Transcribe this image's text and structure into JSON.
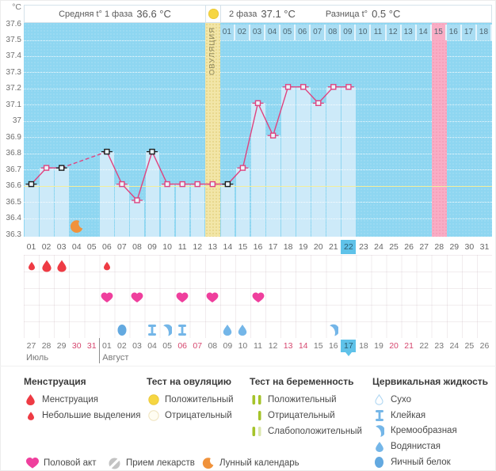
{
  "header": {
    "phase1_label": "Средняя t° 1 фаза",
    "phase1_value": "36.6 °C",
    "phase2_label": "2 фаза",
    "phase2_value": "37.1 °C",
    "diff_label": "Разница t°",
    "diff_value": "0.5 °C"
  },
  "axis": {
    "unit": "°C",
    "ticks": [
      "37.6",
      "37.5",
      "37.4",
      "37.3",
      "37.2",
      "37.1",
      "37",
      "36.9",
      "36.8",
      "36.7",
      "36.6",
      "36.5",
      "36.4",
      "36.3"
    ]
  },
  "chart_data": {
    "type": "line",
    "xlabel": "cycle day",
    "ylabel": "°C",
    "ylim": [
      36.3,
      37.6
    ],
    "y_step": 0.1,
    "cycle_days": [
      "01",
      "02",
      "03",
      "04",
      "05",
      "06",
      "07",
      "08",
      "09",
      "10",
      "11",
      "12",
      "13",
      "14",
      "15",
      "16",
      "17",
      "18",
      "19",
      "20",
      "21",
      "22",
      "23",
      "24",
      "25",
      "26",
      "27",
      "28",
      "29",
      "30",
      "31"
    ],
    "temps": [
      36.61,
      36.71,
      36.71,
      null,
      null,
      36.81,
      36.61,
      36.51,
      36.81,
      36.61,
      36.61,
      36.61,
      36.61,
      36.61,
      36.71,
      37.11,
      36.91,
      37.21,
      37.21,
      37.11,
      37.21,
      37.21,
      null,
      null,
      null,
      null,
      null,
      null,
      null,
      null,
      null
    ],
    "flagged_days": [
      1,
      3,
      6,
      9,
      14
    ],
    "dashed_gap_days": [
      [
        3,
        6
      ]
    ],
    "coverline": 36.6,
    "ovulation_day": 13,
    "ovulation_label": "ОВУЛЯЦИЯ",
    "expected_period_day": 28,
    "current_cycle_day": 22,
    "phase2_days": [
      "01",
      "02",
      "03",
      "04",
      "05",
      "06",
      "07",
      "08",
      "09",
      "10",
      "11",
      "12",
      "13",
      "14",
      "15",
      "16",
      "17",
      "18"
    ],
    "phase2_period_cell": "15"
  },
  "events": {
    "menstruation": [
      {
        "day": 1,
        "size": "small"
      },
      {
        "day": 2,
        "size": "large"
      },
      {
        "day": 3,
        "size": "large"
      },
      {
        "day": 6,
        "size": "small"
      }
    ],
    "intercourse_days": [
      6,
      8,
      11,
      13,
      16
    ],
    "cervical_fluid": [
      {
        "day": 7,
        "type": "eggwhite"
      },
      {
        "day": 9,
        "type": "sticky"
      },
      {
        "day": 10,
        "type": "creamy"
      },
      {
        "day": 11,
        "type": "sticky"
      },
      {
        "day": 14,
        "type": "watery"
      },
      {
        "day": 15,
        "type": "watery"
      },
      {
        "day": 21,
        "type": "creamy"
      }
    ],
    "lunar_days": [
      4
    ]
  },
  "calendar": {
    "months": [
      {
        "label": "Июль"
      },
      {
        "label": "Август"
      }
    ],
    "august_start_index": 5,
    "today_index": 21,
    "days": [
      {
        "label": "27",
        "red": false
      },
      {
        "label": "28",
        "red": false
      },
      {
        "label": "29",
        "red": false
      },
      {
        "label": "30",
        "red": true
      },
      {
        "label": "31",
        "red": true
      },
      {
        "label": "01",
        "red": false
      },
      {
        "label": "02",
        "red": false
      },
      {
        "label": "03",
        "red": false
      },
      {
        "label": "04",
        "red": false
      },
      {
        "label": "05",
        "red": false
      },
      {
        "label": "06",
        "red": true
      },
      {
        "label": "07",
        "red": true
      },
      {
        "label": "08",
        "red": false
      },
      {
        "label": "09",
        "red": false
      },
      {
        "label": "10",
        "red": false
      },
      {
        "label": "11",
        "red": false
      },
      {
        "label": "12",
        "red": false
      },
      {
        "label": "13",
        "red": true
      },
      {
        "label": "14",
        "red": true
      },
      {
        "label": "15",
        "red": false
      },
      {
        "label": "16",
        "red": false
      },
      {
        "label": "17",
        "red": false
      },
      {
        "label": "18",
        "red": false
      },
      {
        "label": "19",
        "red": false
      },
      {
        "label": "20",
        "red": true
      },
      {
        "label": "21",
        "red": true
      },
      {
        "label": "22",
        "red": false
      },
      {
        "label": "23",
        "red": false
      },
      {
        "label": "24",
        "red": false
      },
      {
        "label": "25",
        "red": false
      },
      {
        "label": "26",
        "red": false
      }
    ]
  },
  "legend": {
    "menstruation": {
      "title": "Менструация",
      "items": [
        {
          "label": "Менструация"
        },
        {
          "label": "Небольшие выделения"
        }
      ]
    },
    "ovulation_test": {
      "title": "Тест на овуляцию",
      "items": [
        {
          "label": "Положительный"
        },
        {
          "label": "Отрицательный"
        }
      ]
    },
    "pregnancy_test": {
      "title": "Тест на беременность",
      "items": [
        {
          "label": "Положительный"
        },
        {
          "label": "Отрицательный"
        },
        {
          "label": "Слабоположительный"
        }
      ]
    },
    "cervical_fluid": {
      "title": "Цервикальная жидкость",
      "items": [
        {
          "label": "Сухо"
        },
        {
          "label": "Клейкая"
        },
        {
          "label": "Кремообразная"
        },
        {
          "label": "Водянистая"
        },
        {
          "label": "Яичный белок"
        }
      ]
    },
    "intercourse_label": "Половой акт",
    "medication_label": "Прием лекарств",
    "lunar_label": "Лунный календарь"
  },
  "colors": {
    "chart_bg": "#8ed6f1",
    "bar": "#cdeaf9",
    "line": "#e0437f",
    "flagged": "#1c1c1c",
    "coverline": "#f3ee9c",
    "ovulation_col": "#f2e6a8",
    "period_col": "#f9adc5",
    "highlight": "#5fc2e9",
    "menstruation": "#ee3b44",
    "heart": "#ef3f9d",
    "fluid": "#74b6e8",
    "fluid_dark": "#63a9e0",
    "test_yellow": "#f6d642",
    "test_green": "#a5c32a",
    "moon": "#f0923b",
    "red_date": "#d6476f"
  }
}
